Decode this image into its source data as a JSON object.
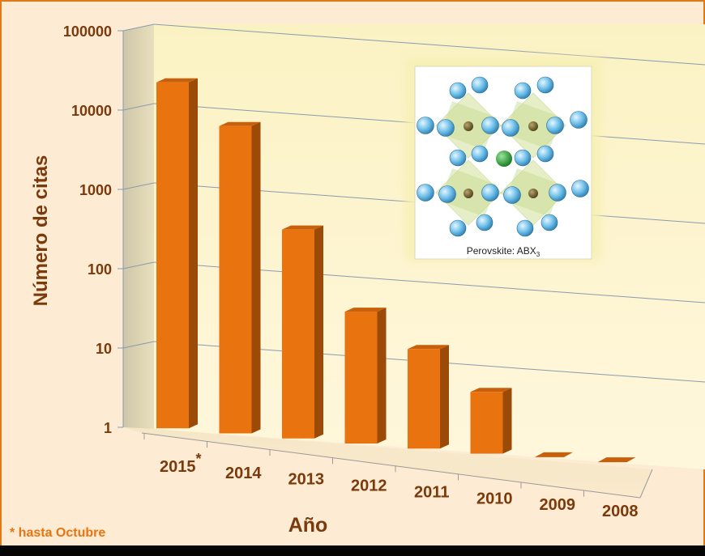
{
  "chart_data": {
    "type": "bar",
    "categories": [
      "2015*",
      "2014",
      "2013",
      "2012",
      "2011",
      "2010",
      "2009",
      "2008"
    ],
    "values": [
      23000,
      7500,
      430,
      46,
      18,
      6,
      0,
      0
    ],
    "yscale": "log",
    "ylim": [
      1,
      100000
    ],
    "yticks": [
      "1",
      "10",
      "100",
      "1000",
      "10000",
      "100000"
    ],
    "ylabel": "Número de citas",
    "xlabel": "Año",
    "footnote": "* hasta Octubre",
    "bar_color": "#e8730f",
    "grid": true
  },
  "inset": {
    "caption": "Perovskite: ABX",
    "caption_sub": "3"
  }
}
